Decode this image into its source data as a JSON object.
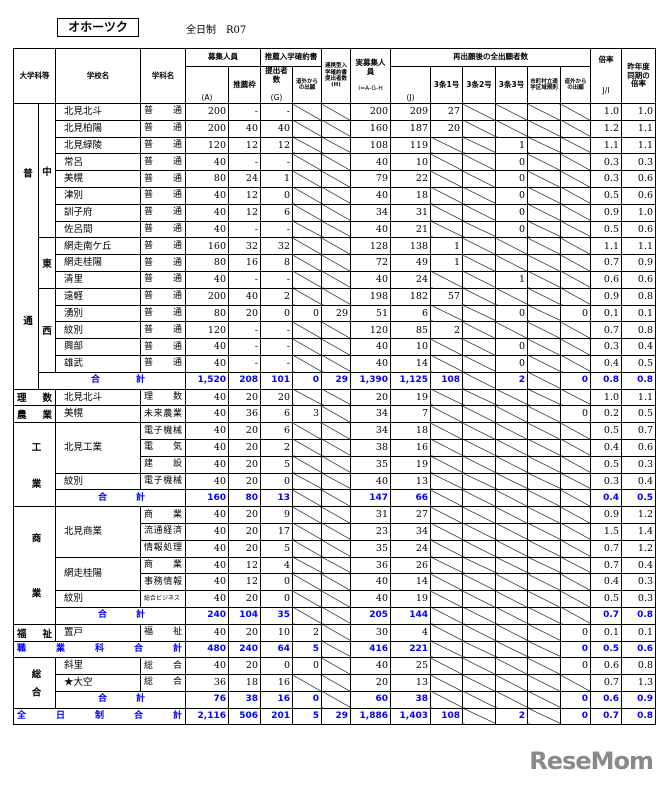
{
  "region": "オホーツク",
  "subtitle": "全日制　R07",
  "header": {
    "category": "大学科等",
    "school": "学校名",
    "dept": "学科名",
    "recruit": "募集人員",
    "recruit_a": "(A)",
    "recommend_quota": "推薦枠",
    "pledge": "推薦入学確約書",
    "pledge_submitted": "提出者数",
    "pledge_g": "(G)",
    "pledge_outside": "道外からの出願",
    "linked": "連携型入学確約書提出者数(H)",
    "actual": "実募集人員",
    "actual_formula": "I=A-G-H",
    "reapply": "再出願後の全出願者数",
    "reapply_j": "(J)",
    "art3_1": "3条1号",
    "art3_2": "3条2号",
    "art3_3": "3条3号",
    "municipal": "市町村立通学区域規則",
    "outside": "道外からの出願",
    "ratio": "倍率",
    "ratio_formula": "J/I",
    "last_year": "昨年度同期の倍率"
  },
  "sections": [
    {
      "label": "普通",
      "subgroups": [
        {
          "label": "中",
          "schools": [
            {
              "name": "北見北斗",
              "depts": [
                {
                  "dept": "普　通",
                  "values": [
                    "200",
                    "-",
                    "-",
                    null,
                    null,
                    "200",
                    "209",
                    "27",
                    null,
                    null,
                    null,
                    null,
                    "1.0",
                    "1.0"
                  ]
                }
              ]
            },
            {
              "name": "北見柏陽",
              "depts": [
                {
                  "dept": "普　通",
                  "values": [
                    "200",
                    "40",
                    "40",
                    null,
                    null,
                    "160",
                    "187",
                    "20",
                    null,
                    null,
                    null,
                    null,
                    "1.2",
                    "1.1"
                  ]
                }
              ]
            },
            {
              "name": "北見緑陵",
              "depts": [
                {
                  "dept": "普　通",
                  "values": [
                    "120",
                    "12",
                    "12",
                    null,
                    null,
                    "108",
                    "119",
                    null,
                    null,
                    "1",
                    null,
                    null,
                    "1.1",
                    "1.1"
                  ]
                }
              ]
            },
            {
              "name": "常呂",
              "depts": [
                {
                  "dept": "普　通",
                  "values": [
                    "40",
                    "-",
                    "-",
                    null,
                    null,
                    "40",
                    "10",
                    null,
                    null,
                    "0",
                    null,
                    null,
                    "0.3",
                    "0.3"
                  ]
                }
              ]
            },
            {
              "name": "美幌",
              "depts": [
                {
                  "dept": "普　通",
                  "values": [
                    "80",
                    "24",
                    "1",
                    null,
                    null,
                    "79",
                    "22",
                    null,
                    null,
                    "0",
                    null,
                    null,
                    "0.3",
                    "0.6"
                  ]
                }
              ]
            },
            {
              "name": "津別",
              "depts": [
                {
                  "dept": "普　通",
                  "values": [
                    "40",
                    "12",
                    "0",
                    null,
                    null,
                    "40",
                    "18",
                    null,
                    null,
                    "0",
                    null,
                    null,
                    "0.5",
                    "0.6"
                  ]
                }
              ]
            },
            {
              "name": "訓子府",
              "depts": [
                {
                  "dept": "普　通",
                  "values": [
                    "40",
                    "12",
                    "6",
                    null,
                    null,
                    "34",
                    "31",
                    null,
                    null,
                    "0",
                    null,
                    null,
                    "0.9",
                    "1.0"
                  ]
                }
              ]
            },
            {
              "name": "佐呂間",
              "depts": [
                {
                  "dept": "普　通",
                  "values": [
                    "40",
                    "-",
                    "-",
                    null,
                    null,
                    "40",
                    "21",
                    null,
                    null,
                    "0",
                    null,
                    null,
                    "0.5",
                    "0.6"
                  ]
                }
              ]
            }
          ]
        },
        {
          "label": "東",
          "schools": [
            {
              "name": "網走南ケ丘",
              "depts": [
                {
                  "dept": "普　通",
                  "values": [
                    "160",
                    "32",
                    "32",
                    null,
                    null,
                    "128",
                    "138",
                    "1",
                    null,
                    null,
                    null,
                    null,
                    "1.1",
                    "1.1"
                  ]
                }
              ]
            },
            {
              "name": "網走桂陽",
              "depts": [
                {
                  "dept": "普　通",
                  "values": [
                    "80",
                    "16",
                    "8",
                    null,
                    null,
                    "72",
                    "49",
                    "1",
                    null,
                    null,
                    null,
                    null,
                    "0.7",
                    "0.9"
                  ]
                }
              ]
            },
            {
              "name": "清里",
              "depts": [
                {
                  "dept": "普　通",
                  "values": [
                    "40",
                    "-",
                    "-",
                    null,
                    null,
                    "40",
                    "24",
                    null,
                    null,
                    "1",
                    null,
                    null,
                    "0.6",
                    "0.6"
                  ]
                }
              ]
            }
          ]
        },
        {
          "label": "西",
          "schools": [
            {
              "name": "遠軽",
              "depts": [
                {
                  "dept": "普　通",
                  "values": [
                    "200",
                    "40",
                    "2",
                    null,
                    null,
                    "198",
                    "182",
                    "57",
                    null,
                    null,
                    null,
                    null,
                    "0.9",
                    "0.8"
                  ]
                }
              ]
            },
            {
              "name": "湧別",
              "depts": [
                {
                  "dept": "普　通",
                  "values": [
                    "80",
                    "20",
                    "0",
                    "0",
                    "29",
                    "51",
                    "6",
                    null,
                    null,
                    "0",
                    null,
                    "0",
                    "0.1",
                    "0.1"
                  ]
                }
              ]
            },
            {
              "name": "紋別",
              "depts": [
                {
                  "dept": "普　通",
                  "values": [
                    "120",
                    "-",
                    "-",
                    null,
                    null,
                    "120",
                    "85",
                    "2",
                    null,
                    null,
                    null,
                    null,
                    "0.7",
                    "0.8"
                  ]
                }
              ]
            },
            {
              "name": "興部",
              "depts": [
                {
                  "dept": "普　通",
                  "values": [
                    "40",
                    "-",
                    "-",
                    null,
                    null,
                    "40",
                    "10",
                    null,
                    null,
                    "0",
                    null,
                    null,
                    "0.3",
                    "0.4"
                  ]
                }
              ]
            },
            {
              "name": "雄武",
              "depts": [
                {
                  "dept": "普　通",
                  "values": [
                    "40",
                    "-",
                    "-",
                    null,
                    null,
                    "40",
                    "14",
                    null,
                    null,
                    "0",
                    null,
                    null,
                    "0.4",
                    "0.5"
                  ]
                }
              ]
            }
          ]
        }
      ],
      "total": {
        "label": "合計",
        "values": [
          "1,520",
          "208",
          "101",
          "0",
          "29",
          "1,390",
          "1,125",
          "108",
          null,
          "2",
          null,
          "0",
          "0.8",
          "0.8"
        ]
      }
    },
    {
      "label": "理数",
      "schools": [
        {
          "name": "北見北斗",
          "depts": [
            {
              "dept": "理　数",
              "values": [
                "40",
                "20",
                "20",
                null,
                null,
                "20",
                "19",
                null,
                null,
                null,
                null,
                null,
                "1.0",
                "1.1"
              ]
            }
          ]
        }
      ]
    },
    {
      "label": "農業",
      "schools": [
        {
          "name": "美幌",
          "depts": [
            {
              "dept": "未来農業",
              "values": [
                "40",
                "36",
                "6",
                "3",
                null,
                "34",
                "7",
                null,
                null,
                null,
                null,
                "0",
                "0.2",
                "0.5"
              ]
            }
          ]
        }
      ]
    },
    {
      "label": "工業",
      "schools": [
        {
          "name": "北見工業",
          "depts": [
            {
              "dept": "電子機械",
              "values": [
                "40",
                "20",
                "6",
                null,
                null,
                "34",
                "18",
                null,
                null,
                null,
                null,
                null,
                "0.5",
                "0.7"
              ]
            },
            {
              "dept": "電　気",
              "values": [
                "40",
                "20",
                "2",
                null,
                null,
                "38",
                "16",
                null,
                null,
                null,
                null,
                null,
                "0.4",
                "0.6"
              ]
            },
            {
              "dept": "建　設",
              "values": [
                "40",
                "20",
                "5",
                null,
                null,
                "35",
                "19",
                null,
                null,
                null,
                null,
                null,
                "0.5",
                "0.3"
              ]
            }
          ]
        },
        {
          "name": "紋別",
          "depts": [
            {
              "dept": "電子機械",
              "values": [
                "40",
                "20",
                "0",
                null,
                null,
                "40",
                "13",
                null,
                null,
                null,
                null,
                null,
                "0.3",
                "0.4"
              ]
            }
          ]
        }
      ],
      "total": {
        "label": "合計",
        "values": [
          "160",
          "80",
          "13",
          null,
          null,
          "147",
          "66",
          null,
          null,
          null,
          null,
          null,
          "0.4",
          "0.5"
        ]
      }
    },
    {
      "label": "商業",
      "schools": [
        {
          "name": "北見商業",
          "depts": [
            {
              "dept": "商　業",
              "values": [
                "40",
                "20",
                "9",
                null,
                null,
                "31",
                "27",
                null,
                null,
                null,
                null,
                null,
                "0.9",
                "1.2"
              ]
            },
            {
              "dept": "流通経済",
              "values": [
                "40",
                "20",
                "17",
                null,
                null,
                "23",
                "34",
                null,
                null,
                null,
                null,
                null,
                "1.5",
                "1.4"
              ]
            },
            {
              "dept": "情報処理",
              "values": [
                "40",
                "20",
                "5",
                null,
                null,
                "35",
                "24",
                null,
                null,
                null,
                null,
                null,
                "0.7",
                "1.2"
              ]
            }
          ]
        },
        {
          "name": "網走桂陽",
          "depts": [
            {
              "dept": "商　業",
              "values": [
                "40",
                "12",
                "4",
                null,
                null,
                "36",
                "26",
                null,
                null,
                null,
                null,
                null,
                "0.7",
                "0.4"
              ]
            },
            {
              "dept": "事務情報",
              "values": [
                "40",
                "12",
                "0",
                null,
                null,
                "40",
                "14",
                null,
                null,
                null,
                null,
                null,
                "0.4",
                "0.3"
              ]
            }
          ]
        },
        {
          "name": "紋別",
          "depts": [
            {
              "dept": "総合ビジネス",
              "small": true,
              "values": [
                "40",
                "20",
                "0",
                null,
                null,
                "40",
                "19",
                null,
                null,
                null,
                null,
                null,
                "0.5",
                "0.3"
              ]
            }
          ]
        }
      ],
      "total": {
        "label": "合計",
        "values": [
          "240",
          "104",
          "35",
          null,
          null,
          "205",
          "144",
          null,
          null,
          null,
          null,
          null,
          "0.7",
          "0.8"
        ]
      }
    },
    {
      "label": "福祉",
      "schools": [
        {
          "name": "置戸",
          "depts": [
            {
              "dept": "福　祉",
              "values": [
                "40",
                "20",
                "10",
                "2",
                null,
                "30",
                "4",
                null,
                null,
                null,
                null,
                "0",
                "0.1",
                "0.1"
              ]
            }
          ]
        }
      ]
    },
    {
      "grand": "職業科合計",
      "values": [
        "480",
        "240",
        "64",
        "5",
        null,
        "416",
        "221",
        null,
        null,
        null,
        null,
        "0",
        "0.5",
        "0.6"
      ]
    },
    {
      "label": "総合",
      "schools": [
        {
          "name": "斜里",
          "depts": [
            {
              "dept": "総　合",
              "values": [
                "40",
                "20",
                "0",
                "0",
                null,
                "40",
                "25",
                null,
                null,
                null,
                null,
                "0",
                "0.6",
                "0.8"
              ]
            }
          ]
        },
        {
          "name": "★大空",
          "depts": [
            {
              "dept": "総　合",
              "values": [
                "36",
                "18",
                "16",
                null,
                null,
                "20",
                "13",
                null,
                null,
                null,
                null,
                null,
                "0.7",
                "1.3"
              ]
            }
          ]
        }
      ],
      "total": {
        "label": "合計",
        "values": [
          "76",
          "38",
          "16",
          "0",
          null,
          "60",
          "38",
          null,
          null,
          null,
          null,
          "0",
          "0.6",
          "0.9"
        ]
      }
    },
    {
      "grand": "全日制合計",
      "values": [
        "2,116",
        "506",
        "201",
        "5",
        "29",
        "1,886",
        "1,403",
        "108",
        null,
        "2",
        null,
        "0",
        "0.7",
        "0.8"
      ]
    }
  ],
  "watermark": "ReseMom",
  "colors": {
    "total_text": "#0000ff",
    "watermark": "#8a8a8a"
  }
}
